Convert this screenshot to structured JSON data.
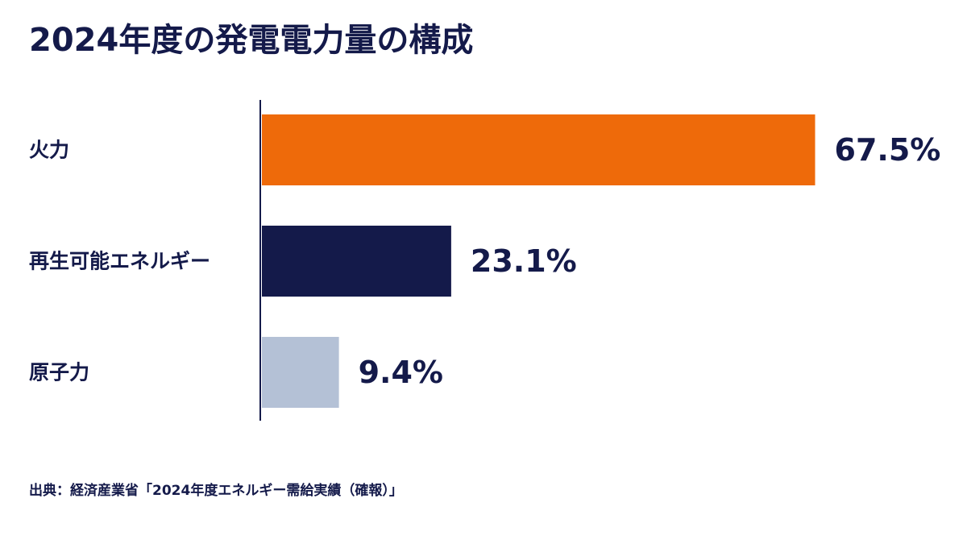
{
  "colors": {
    "text": "#141a4a",
    "axis": "#141a4a",
    "background": "#ffffff"
  },
  "chart_data": {
    "type": "bar",
    "orientation": "horizontal",
    "title": "2024年度の発電電力量の構成",
    "xlabel": "",
    "ylabel": "",
    "unit": "%",
    "xlim": [
      0,
      70
    ],
    "grid": false,
    "legend": "none",
    "categories": [
      "火力",
      "再生可能エネルギー",
      "原子力"
    ],
    "values": [
      67.5,
      23.1,
      9.4
    ],
    "data_labels": [
      "67.5%",
      "23.1%",
      "9.4%"
    ],
    "bar_colors": [
      "#ee6a0a",
      "#141a4a",
      "#b4c1d6"
    ]
  },
  "source": "出典：経済産業省「2024年度エネルギー需給実績（確報）」"
}
